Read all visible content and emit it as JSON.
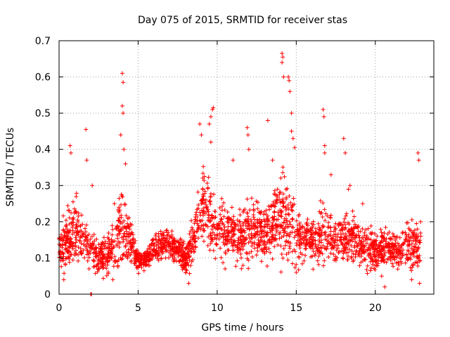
{
  "chart_data": {
    "type": "scatter",
    "title": "Day 075 of 2015, SRMTID for receiver stas",
    "xlabel": "GPS time / hours",
    "ylabel": "SRMTID / TECUs",
    "xlim": [
      0,
      23.7
    ],
    "ylim": [
      0,
      0.7
    ],
    "xticks": [
      0,
      5,
      10,
      15,
      20
    ],
    "yticks": [
      0,
      0.1,
      0.2,
      0.3,
      0.4,
      0.5,
      0.6,
      0.7
    ],
    "xtick_labels": [
      "0",
      "5",
      "10",
      "15",
      "20"
    ],
    "ytick_labels": [
      "0",
      "0.1",
      "0.2",
      "0.3",
      "0.4",
      "0.5",
      "0.6",
      "0.7"
    ],
    "grid": true,
    "marker": "+",
    "color": "#ff0000",
    "series": [
      {
        "name": "SRMTID",
        "profile": {
          "x": [
            0,
            0.5,
            1.0,
            1.5,
            2.0,
            2.5,
            3.0,
            3.5,
            4.0,
            4.5,
            5.0,
            5.5,
            6.0,
            6.5,
            7.0,
            7.5,
            8.0,
            8.5,
            9.0,
            9.5,
            10.0,
            10.5,
            11.0,
            11.5,
            12.0,
            12.5,
            13.0,
            13.5,
            14.0,
            14.5,
            15.0,
            15.5,
            16.0,
            16.5,
            17.0,
            17.5,
            18.0,
            18.5,
            19.0,
            19.5,
            20.0,
            20.5,
            21.0,
            21.5,
            22.0,
            22.5,
            22.9
          ],
          "center": [
            0.12,
            0.15,
            0.17,
            0.15,
            0.12,
            0.1,
            0.11,
            0.13,
            0.18,
            0.15,
            0.09,
            0.1,
            0.12,
            0.14,
            0.14,
            0.12,
            0.09,
            0.15,
            0.25,
            0.22,
            0.18,
            0.17,
            0.16,
            0.15,
            0.18,
            0.17,
            0.17,
            0.19,
            0.22,
            0.2,
            0.16,
            0.16,
            0.15,
            0.16,
            0.17,
            0.15,
            0.16,
            0.16,
            0.14,
            0.13,
            0.12,
            0.13,
            0.12,
            0.12,
            0.13,
            0.13,
            0.14
          ],
          "spread": [
            0.05,
            0.08,
            0.1,
            0.07,
            0.05,
            0.05,
            0.06,
            0.07,
            0.12,
            0.07,
            0.03,
            0.03,
            0.04,
            0.04,
            0.04,
            0.04,
            0.04,
            0.07,
            0.11,
            0.1,
            0.09,
            0.07,
            0.07,
            0.07,
            0.09,
            0.08,
            0.07,
            0.09,
            0.13,
            0.11,
            0.08,
            0.07,
            0.06,
            0.08,
            0.08,
            0.06,
            0.08,
            0.07,
            0.06,
            0.06,
            0.05,
            0.05,
            0.05,
            0.05,
            0.06,
            0.07,
            0.07
          ]
        },
        "highlights": [
          {
            "x": 0.7,
            "y": 0.41
          },
          {
            "x": 0.75,
            "y": 0.39
          },
          {
            "x": 1.7,
            "y": 0.455
          },
          {
            "x": 1.75,
            "y": 0.37
          },
          {
            "x": 2.1,
            "y": 0.3
          },
          {
            "x": 3.5,
            "y": 0.25
          },
          {
            "x": 3.9,
            "y": 0.44
          },
          {
            "x": 4.0,
            "y": 0.61
          },
          {
            "x": 4.05,
            "y": 0.585
          },
          {
            "x": 4.0,
            "y": 0.52
          },
          {
            "x": 4.05,
            "y": 0.5
          },
          {
            "x": 4.1,
            "y": 0.4
          },
          {
            "x": 4.2,
            "y": 0.36
          },
          {
            "x": 8.9,
            "y": 0.47
          },
          {
            "x": 9.0,
            "y": 0.44
          },
          {
            "x": 9.5,
            "y": 0.47
          },
          {
            "x": 9.6,
            "y": 0.49
          },
          {
            "x": 9.7,
            "y": 0.51
          },
          {
            "x": 9.75,
            "y": 0.515
          },
          {
            "x": 9.6,
            "y": 0.42
          },
          {
            "x": 11.0,
            "y": 0.37
          },
          {
            "x": 11.9,
            "y": 0.46
          },
          {
            "x": 11.95,
            "y": 0.44
          },
          {
            "x": 12.0,
            "y": 0.4
          },
          {
            "x": 13.2,
            "y": 0.48
          },
          {
            "x": 13.5,
            "y": 0.37
          },
          {
            "x": 14.1,
            "y": 0.665
          },
          {
            "x": 14.15,
            "y": 0.655
          },
          {
            "x": 14.1,
            "y": 0.64
          },
          {
            "x": 14.2,
            "y": 0.6
          },
          {
            "x": 14.5,
            "y": 0.6
          },
          {
            "x": 14.55,
            "y": 0.59
          },
          {
            "x": 14.6,
            "y": 0.56
          },
          {
            "x": 14.7,
            "y": 0.5
          },
          {
            "x": 14.7,
            "y": 0.45
          },
          {
            "x": 14.8,
            "y": 0.43
          },
          {
            "x": 14.9,
            "y": 0.405
          },
          {
            "x": 16.7,
            "y": 0.51
          },
          {
            "x": 16.75,
            "y": 0.49
          },
          {
            "x": 16.8,
            "y": 0.41
          },
          {
            "x": 16.8,
            "y": 0.39
          },
          {
            "x": 17.2,
            "y": 0.33
          },
          {
            "x": 18.0,
            "y": 0.43
          },
          {
            "x": 18.1,
            "y": 0.39
          },
          {
            "x": 18.3,
            "y": 0.29
          },
          {
            "x": 18.4,
            "y": 0.3
          },
          {
            "x": 19.2,
            "y": 0.25
          },
          {
            "x": 20.6,
            "y": 0.02
          },
          {
            "x": 20.4,
            "y": 0.05
          },
          {
            "x": 22.7,
            "y": 0.39
          },
          {
            "x": 22.75,
            "y": 0.37
          },
          {
            "x": 22.8,
            "y": 0.03
          },
          {
            "x": 22.3,
            "y": 0.04
          },
          {
            "x": 0.3,
            "y": 0.04
          },
          {
            "x": 3.4,
            "y": 0.04
          },
          {
            "x": 8.2,
            "y": 0.03
          },
          {
            "x": 2.0,
            "y": 0.0
          },
          {
            "x": 2.05,
            "y": 0.0
          },
          {
            "x": 15.0,
            "y": 0.06
          },
          {
            "x": 10.5,
            "y": 0.07
          }
        ]
      }
    ]
  }
}
